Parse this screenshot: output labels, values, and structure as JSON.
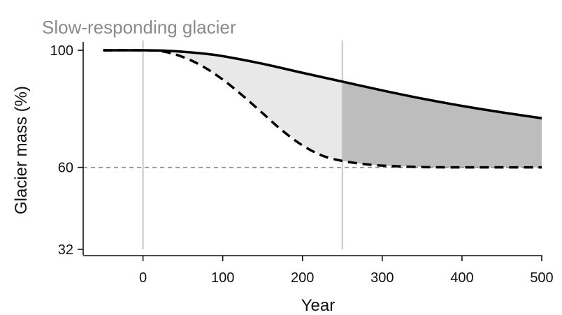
{
  "chart_data": {
    "type": "area",
    "title": "Slow-responding glacier",
    "xlabel": "Year",
    "ylabel": "Glacier mass (%)",
    "xlim": [
      -75,
      500
    ],
    "ylim": [
      32,
      100
    ],
    "xticks": [
      0,
      100,
      200,
      300,
      400,
      500
    ],
    "yticks": [
      32,
      60,
      100
    ],
    "vertical_lines": [
      0,
      250
    ],
    "reference_line_y": 60,
    "series": [
      {
        "line": "solid",
        "x": [
          -50,
          0,
          25,
          50,
          75,
          100,
          150,
          200,
          250,
          300,
          350,
          400,
          450,
          500
        ],
        "y": [
          100,
          100,
          99.9,
          99.5,
          98.9,
          98,
          95.4,
          92.3,
          89.3,
          86.3,
          83.5,
          81,
          78.8,
          76.8
        ]
      },
      {
        "line": "dashed",
        "x": [
          -50,
          0,
          25,
          50,
          75,
          100,
          125,
          150,
          175,
          200,
          225,
          250,
          275,
          300,
          350,
          400,
          450,
          500
        ],
        "y": [
          100,
          100,
          99.6,
          97.7,
          94.5,
          90,
          84.5,
          78.5,
          72.5,
          67.5,
          64,
          62.2,
          61.2,
          60.6,
          60.1,
          60,
          60,
          60
        ]
      }
    ],
    "fills": [
      {
        "from_x": 0,
        "to_x": 250,
        "color": "#e8e8e8"
      },
      {
        "from_x": 250,
        "to_x": 500,
        "color": "#bdbdbd"
      }
    ],
    "colors": {
      "lines": "#000000",
      "reference_line": "#8c8c8c",
      "vertical_lines": "#c6c6c6",
      "axis": "#111111",
      "title": "#8a8a8a"
    }
  }
}
